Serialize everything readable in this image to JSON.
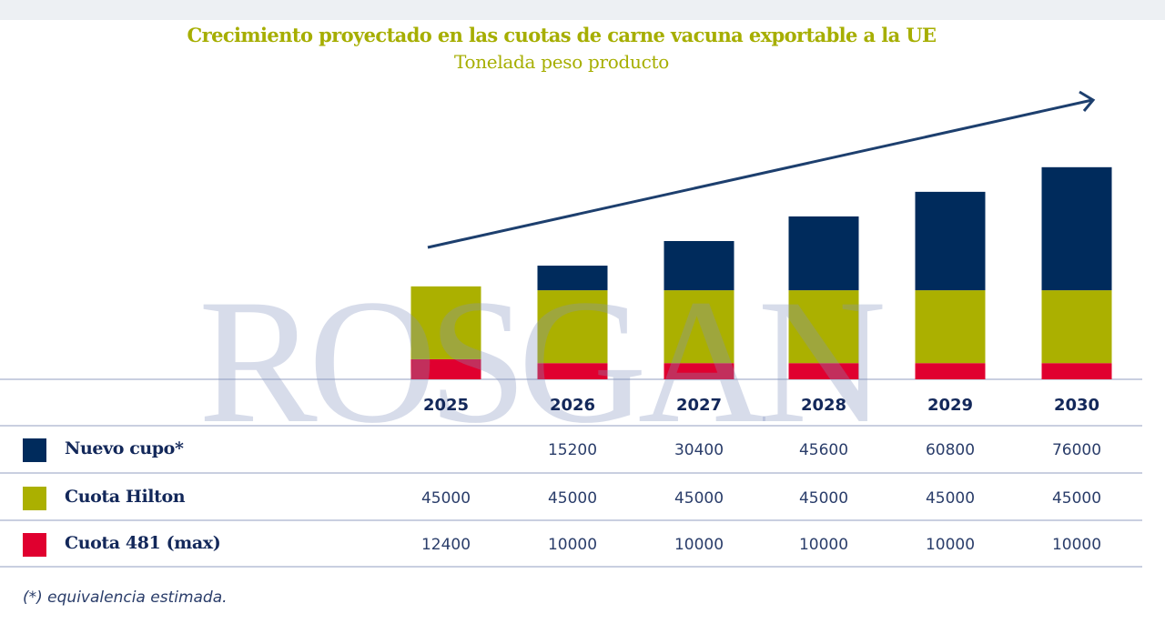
{
  "chart_data": {
    "type": "bar",
    "stacked": true,
    "title": "Crecimiento proyectado en las cuotas de carne vacuna exportable a la UE",
    "subtitle": "Tonelada peso producto",
    "xlabel": "",
    "ylabel": "",
    "categories": [
      "2025",
      "2026",
      "2027",
      "2028",
      "2029",
      "2030"
    ],
    "series": [
      {
        "name": "Cuota 481 (max)",
        "color": "#e0002f",
        "values": [
          12400,
          10000,
          10000,
          10000,
          10000,
          10000
        ],
        "display": [
          "12400",
          "10000",
          "10000",
          "10000",
          "10000",
          "10000"
        ]
      },
      {
        "name": "Cuota Hilton",
        "color": "#abb000",
        "values": [
          45000,
          45000,
          45000,
          45000,
          45000,
          45000
        ],
        "display": [
          "45000",
          "45000",
          "45000",
          "45000",
          "45000",
          "45000"
        ]
      },
      {
        "name": "Nuevo cupo*",
        "color": "#002b5c",
        "values": [
          0,
          15200,
          30400,
          45600,
          60800,
          76000
        ],
        "display": [
          "",
          "15200",
          "30400",
          "45600",
          "60800",
          "76000"
        ]
      }
    ],
    "ylim": [
      0,
      135000
    ],
    "grid": false,
    "trend_arrow": true,
    "legend": "table-below",
    "footnote": "(*) equivalencia estimada.",
    "watermark": "ROSGAN"
  },
  "colors": {
    "title": "#a6ae00",
    "text": "#13285a",
    "arrow": "#1d3f6e",
    "rule": "#c9cfe0"
  }
}
